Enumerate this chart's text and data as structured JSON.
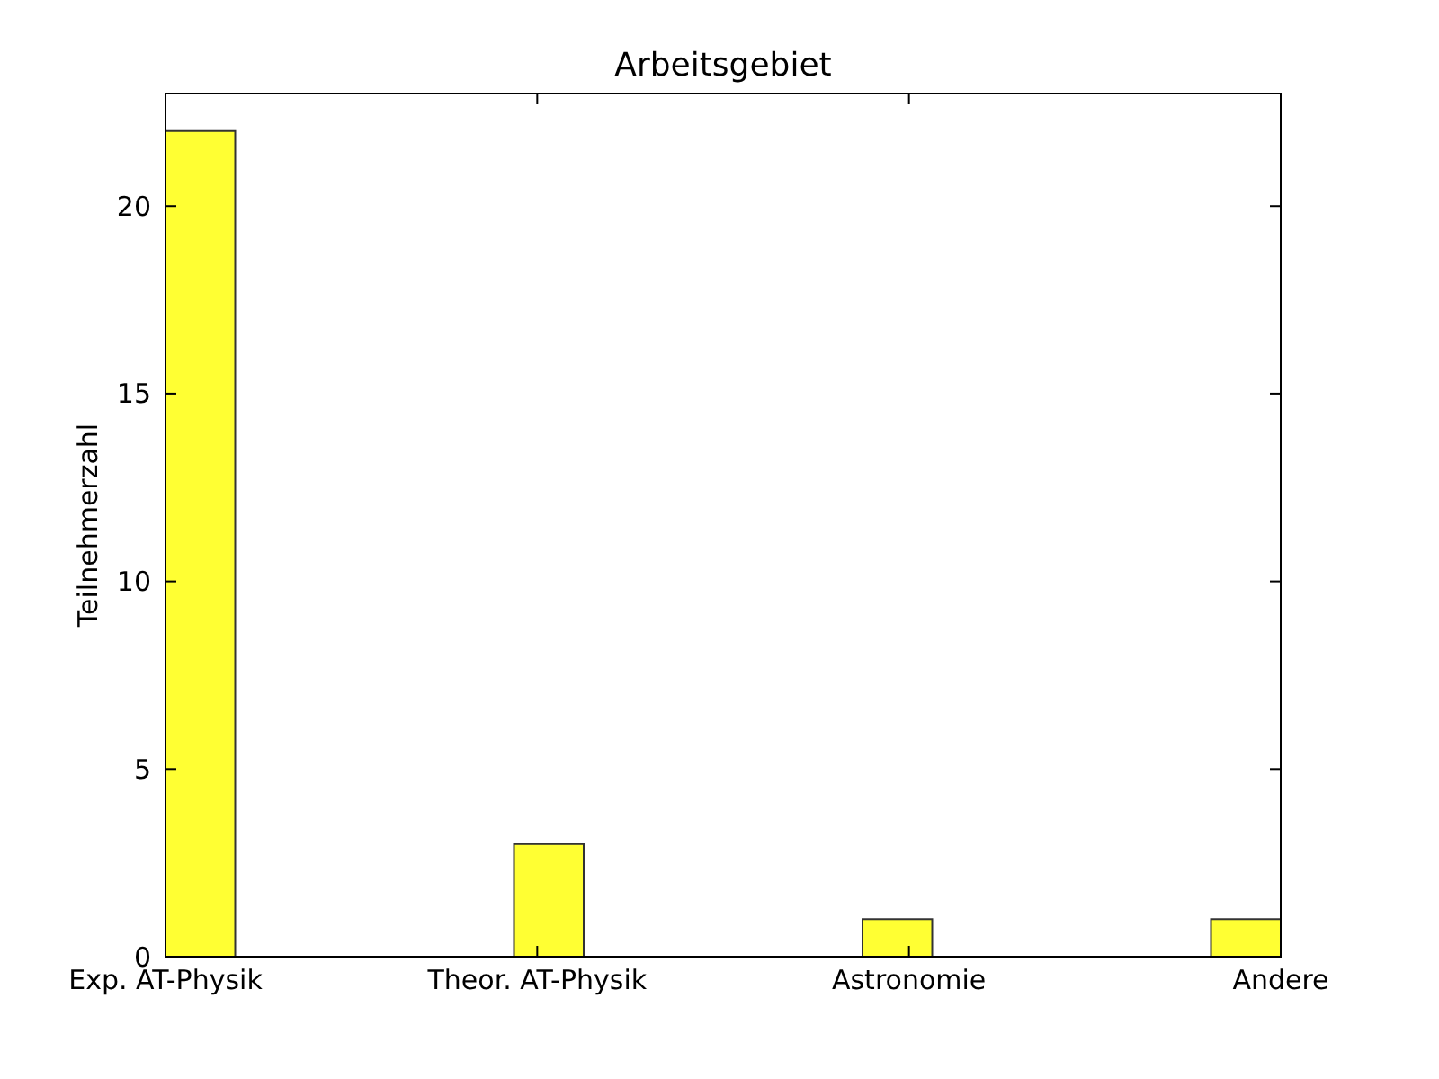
{
  "chart_data": {
    "type": "bar",
    "title": "Arbeitsgebiet",
    "ylabel": "Teilnehmerzahl",
    "categories": [
      "Exp. AT-Physik",
      "Theor. AT-Physik",
      "Astronomie",
      "Andere"
    ],
    "values": [
      22,
      3,
      1,
      1
    ],
    "color": "#ffff33",
    "ylim": [
      0,
      23
    ],
    "yticks": [
      0,
      5,
      10,
      15,
      20
    ],
    "grid": false
  }
}
